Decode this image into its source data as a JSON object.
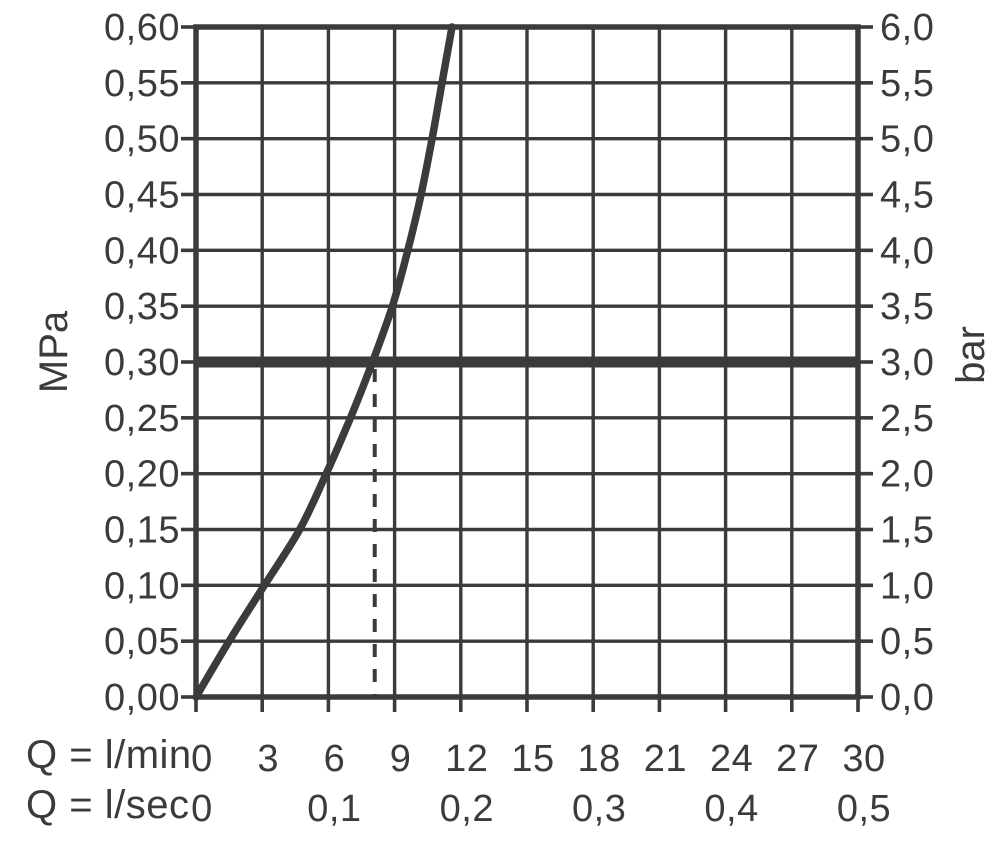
{
  "chart_data": {
    "type": "line",
    "description": "Pressure drop vs flow rate diagram",
    "decimal_separator": ",",
    "colors": {
      "foreground": "#3b3b3d",
      "background": "#ffffff"
    },
    "grid": true,
    "x_axis": {
      "range_lmin": [
        0,
        30
      ],
      "gridline_step_lmin": 3,
      "row1_label": "Q = l/min",
      "row1_ticks": [
        {
          "lmin": 0,
          "text": "0"
        },
        {
          "lmin": 3,
          "text": "3"
        },
        {
          "lmin": 6,
          "text": "6"
        },
        {
          "lmin": 9,
          "text": "9"
        },
        {
          "lmin": 12,
          "text": "12"
        },
        {
          "lmin": 15,
          "text": "15"
        },
        {
          "lmin": 18,
          "text": "18"
        },
        {
          "lmin": 21,
          "text": "21"
        },
        {
          "lmin": 24,
          "text": "24"
        },
        {
          "lmin": 27,
          "text": "27"
        },
        {
          "lmin": 30,
          "text": "30"
        }
      ],
      "row2_label": "Q = l/sec",
      "row2_ticks": [
        {
          "lmin": 0,
          "text": "0"
        },
        {
          "lmin": 6,
          "text": "0,1"
        },
        {
          "lmin": 12,
          "text": "0,2"
        },
        {
          "lmin": 18,
          "text": "0,3"
        },
        {
          "lmin": 24,
          "text": "0,4"
        },
        {
          "lmin": 30,
          "text": "0,5"
        }
      ]
    },
    "y_axis_left": {
      "label": "MPa",
      "range_mpa": [
        0,
        0.6
      ],
      "step_mpa": 0.05,
      "ticks": [
        {
          "mpa": 0.0,
          "text": "0,00"
        },
        {
          "mpa": 0.05,
          "text": "0,05"
        },
        {
          "mpa": 0.1,
          "text": "0,10"
        },
        {
          "mpa": 0.15,
          "text": "0,15"
        },
        {
          "mpa": 0.2,
          "text": "0,20"
        },
        {
          "mpa": 0.25,
          "text": "0,25"
        },
        {
          "mpa": 0.3,
          "text": "0,30"
        },
        {
          "mpa": 0.35,
          "text": "0,35"
        },
        {
          "mpa": 0.4,
          "text": "0,40"
        },
        {
          "mpa": 0.45,
          "text": "0,45"
        },
        {
          "mpa": 0.5,
          "text": "0,50"
        },
        {
          "mpa": 0.55,
          "text": "0,55"
        },
        {
          "mpa": 0.6,
          "text": "0,60"
        }
      ]
    },
    "y_axis_right": {
      "label": "bar",
      "range_bar": [
        0,
        6
      ],
      "step_bar": 0.5,
      "ticks": [
        {
          "mpa": 0.0,
          "text": "0,0"
        },
        {
          "mpa": 0.05,
          "text": "0,5"
        },
        {
          "mpa": 0.1,
          "text": "1,0"
        },
        {
          "mpa": 0.15,
          "text": "1,5"
        },
        {
          "mpa": 0.2,
          "text": "2,0"
        },
        {
          "mpa": 0.25,
          "text": "2,5"
        },
        {
          "mpa": 0.3,
          "text": "3,0"
        },
        {
          "mpa": 0.35,
          "text": "3,5"
        },
        {
          "mpa": 0.4,
          "text": "4,0"
        },
        {
          "mpa": 0.45,
          "text": "4,5"
        },
        {
          "mpa": 0.5,
          "text": "5,0"
        },
        {
          "mpa": 0.55,
          "text": "5,5"
        },
        {
          "mpa": 0.6,
          "text": "6,0"
        }
      ]
    },
    "reference_line": {
      "mpa": 0.3,
      "bar": 3.0
    },
    "dashed_guide": {
      "lmin": 8.1,
      "mpa_top": 0.3
    },
    "series": [
      {
        "name": "pressure-drop-curve",
        "points": [
          {
            "lmin": 0.0,
            "mpa": 0.0
          },
          {
            "lmin": 1.5,
            "mpa": 0.05
          },
          {
            "lmin": 3.1,
            "mpa": 0.1
          },
          {
            "lmin": 4.7,
            "mpa": 0.15
          },
          {
            "lmin": 5.9,
            "mpa": 0.2
          },
          {
            "lmin": 7.0,
            "mpa": 0.25
          },
          {
            "lmin": 8.0,
            "mpa": 0.3
          },
          {
            "lmin": 8.9,
            "mpa": 0.35
          },
          {
            "lmin": 9.6,
            "mpa": 0.4
          },
          {
            "lmin": 10.2,
            "mpa": 0.45
          },
          {
            "lmin": 10.7,
            "mpa": 0.5
          },
          {
            "lmin": 11.15,
            "mpa": 0.55
          },
          {
            "lmin": 11.6,
            "mpa": 0.6
          }
        ]
      }
    ]
  }
}
